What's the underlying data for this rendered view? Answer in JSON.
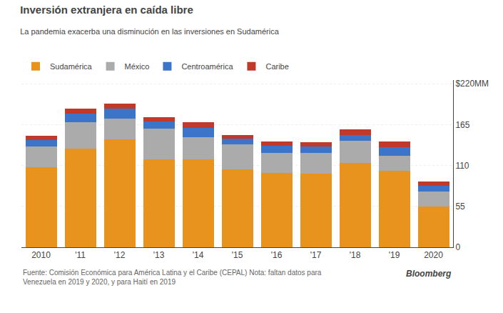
{
  "chart_data": {
    "type": "bar",
    "title": "Inversión extranjera en caída libre",
    "subtitle": "La pandemia exacerba una disminución en las inversiones en Sudamérica",
    "annotations": [
      "Fuente: Comisión Económica para América Latina y el Caribe (CEPAL) Nota: faltan datos para\nVenezuela en 2019 y 2020, y para Haití en 2019",
      "Bloomberg"
    ],
    "categories": [
      "2010",
      "'11",
      "'12",
      "'13",
      "'14",
      "'15",
      "'16",
      "'17",
      "'18",
      "'19",
      "2020"
    ],
    "series": [
      {
        "name": "Sudamérica",
        "color": "#E8931D",
        "values": [
          108,
          133,
          145,
          118,
          118,
          105,
          100,
          99,
          113,
          103,
          55
        ]
      },
      {
        "name": "México",
        "color": "#ABABAB",
        "values": [
          28,
          35,
          28,
          42,
          30,
          33,
          27,
          28,
          30,
          20,
          20
        ]
      },
      {
        "name": "Centroamérica",
        "color": "#3B74C9",
        "values": [
          8,
          12,
          14,
          9,
          13,
          8,
          10,
          9,
          8,
          12,
          8
        ]
      },
      {
        "name": "Caribe",
        "color": "#C0392B",
        "values": [
          6,
          7,
          6,
          6,
          7,
          5,
          5,
          5,
          8,
          7,
          5
        ]
      }
    ],
    "stacked": true,
    "ylim": [
      0,
      225
    ],
    "yticks": [
      0,
      55,
      110,
      165,
      {
        "value": 220,
        "label": "$220MM"
      }
    ],
    "grid": true,
    "legend": "top left"
  }
}
